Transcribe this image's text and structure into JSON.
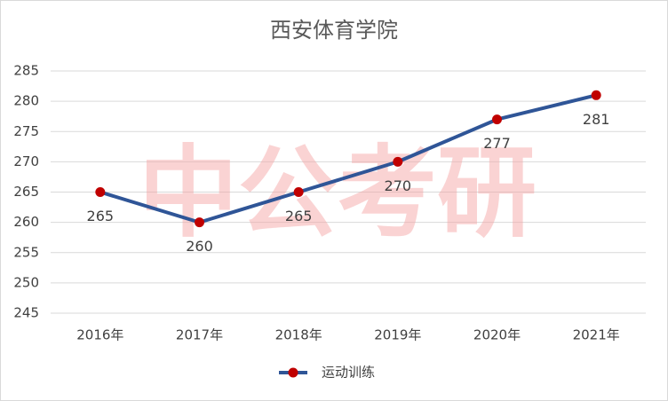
{
  "chart_data": {
    "type": "line",
    "title": "西安体育学院",
    "categories": [
      "2016年",
      "2017年",
      "2018年",
      "2019年",
      "2020年",
      "2021年"
    ],
    "series": [
      {
        "name": "运动训练",
        "color": "#2f5597",
        "marker_color": "#c00000",
        "values": [
          265,
          260,
          265,
          270,
          277,
          281
        ]
      }
    ],
    "ylim": [
      245,
      285
    ],
    "yticks": [
      245,
      250,
      255,
      260,
      265,
      270,
      275,
      280,
      285
    ],
    "grid": true,
    "legend": "bottom",
    "watermark": "中公考研"
  }
}
